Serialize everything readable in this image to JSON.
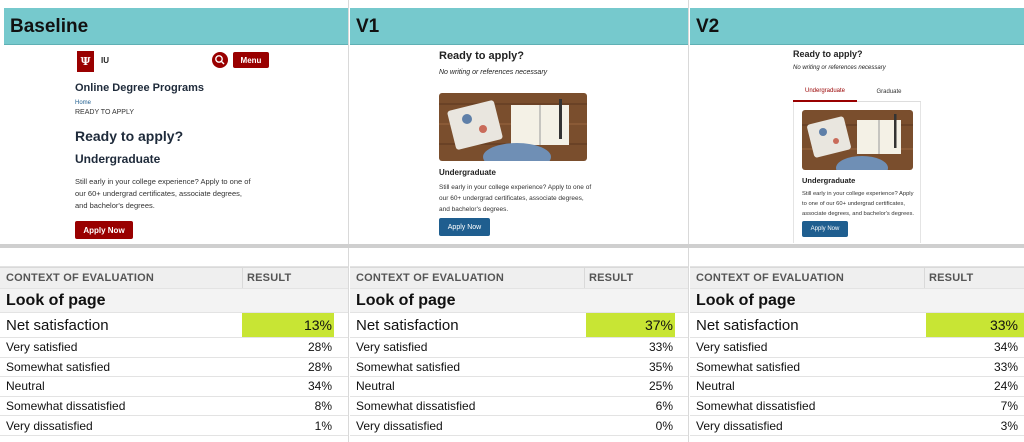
{
  "columns": [
    {
      "key": "baseline",
      "header": "Baseline",
      "preview": {
        "brand": "IU",
        "menu_label": "Menu",
        "site_title": "Online Degree Programs",
        "breadcrumb_home": "Home",
        "breadcrumb_current": "READY TO APPLY",
        "heading": "Ready to apply?",
        "subheading": "Undergraduate",
        "body_line1": "Still early in your college experience? Apply to one of",
        "body_line2": "our 60+ undergrad certificates, associate degrees,",
        "body_line3": "and bachelor's degrees.",
        "button": "Apply Now",
        "accent": "#990000"
      },
      "table": {
        "col_context": "CONTEXT OF EVALUATION",
        "col_result": "RESULT",
        "section": "Look of page",
        "net_label": "Net satisfaction",
        "net_value": "13%",
        "rows": [
          {
            "label": "Very satisfied",
            "value": "28%"
          },
          {
            "label": "Somewhat satisfied",
            "value": "28%"
          },
          {
            "label": "Neutral",
            "value": "34%"
          },
          {
            "label": "Somewhat dissatisfied",
            "value": "8%"
          },
          {
            "label": "Very dissatisfied",
            "value": "1%"
          }
        ]
      }
    },
    {
      "key": "v1",
      "header": "V1",
      "preview": {
        "heading": "Ready to apply?",
        "note": "No writing or references necessary",
        "subheading": "Undergraduate",
        "body_line1": "Still early in your college experience? Apply to one of",
        "body_line2": "our 60+ undergrad certificates, associate degrees,",
        "body_line3": "and bachelor's degrees.",
        "button": "Apply Now",
        "accent": "#1f5e8f"
      },
      "table": {
        "col_context": "CONTEXT OF EVALUATION",
        "col_result": "RESULT",
        "section": "Look of page",
        "net_label": "Net satisfaction",
        "net_value": "37%",
        "rows": [
          {
            "label": "Very satisfied",
            "value": "33%"
          },
          {
            "label": "Somewhat satisfied",
            "value": "35%"
          },
          {
            "label": "Neutral",
            "value": "25%"
          },
          {
            "label": "Somewhat dissatisfied",
            "value": "6%"
          },
          {
            "label": "Very dissatisfied",
            "value": "0%"
          }
        ]
      }
    },
    {
      "key": "v2",
      "header": "V2",
      "preview": {
        "heading": "Ready to apply?",
        "note": "No writing or references necessary",
        "tab_active": "Undergraduate",
        "tab_inactive": "Graduate",
        "subheading": "Undergraduate",
        "body_line1": "Still early in your college experience? Apply",
        "body_line2": "to one of our 60+ undergrad certificates,",
        "body_line3": "associate degrees, and bachelor's degrees.",
        "button": "Apply Now",
        "accent": "#1f5e8f"
      },
      "table": {
        "col_context": "CONTEXT OF EVALUATION",
        "col_result": "RESULT",
        "section": "Look of page",
        "net_label": "Net satisfaction",
        "net_value": "33%",
        "rows": [
          {
            "label": "Very satisfied",
            "value": "34%"
          },
          {
            "label": "Somewhat satisfied",
            "value": "33%"
          },
          {
            "label": "Neutral",
            "value": "24%"
          },
          {
            "label": "Somewhat dissatisfied",
            "value": "7%"
          },
          {
            "label": "Very dissatisfied",
            "value": "3%"
          }
        ]
      }
    }
  ],
  "highlight_color": "#c8e534",
  "header_color": "#76c9cd"
}
